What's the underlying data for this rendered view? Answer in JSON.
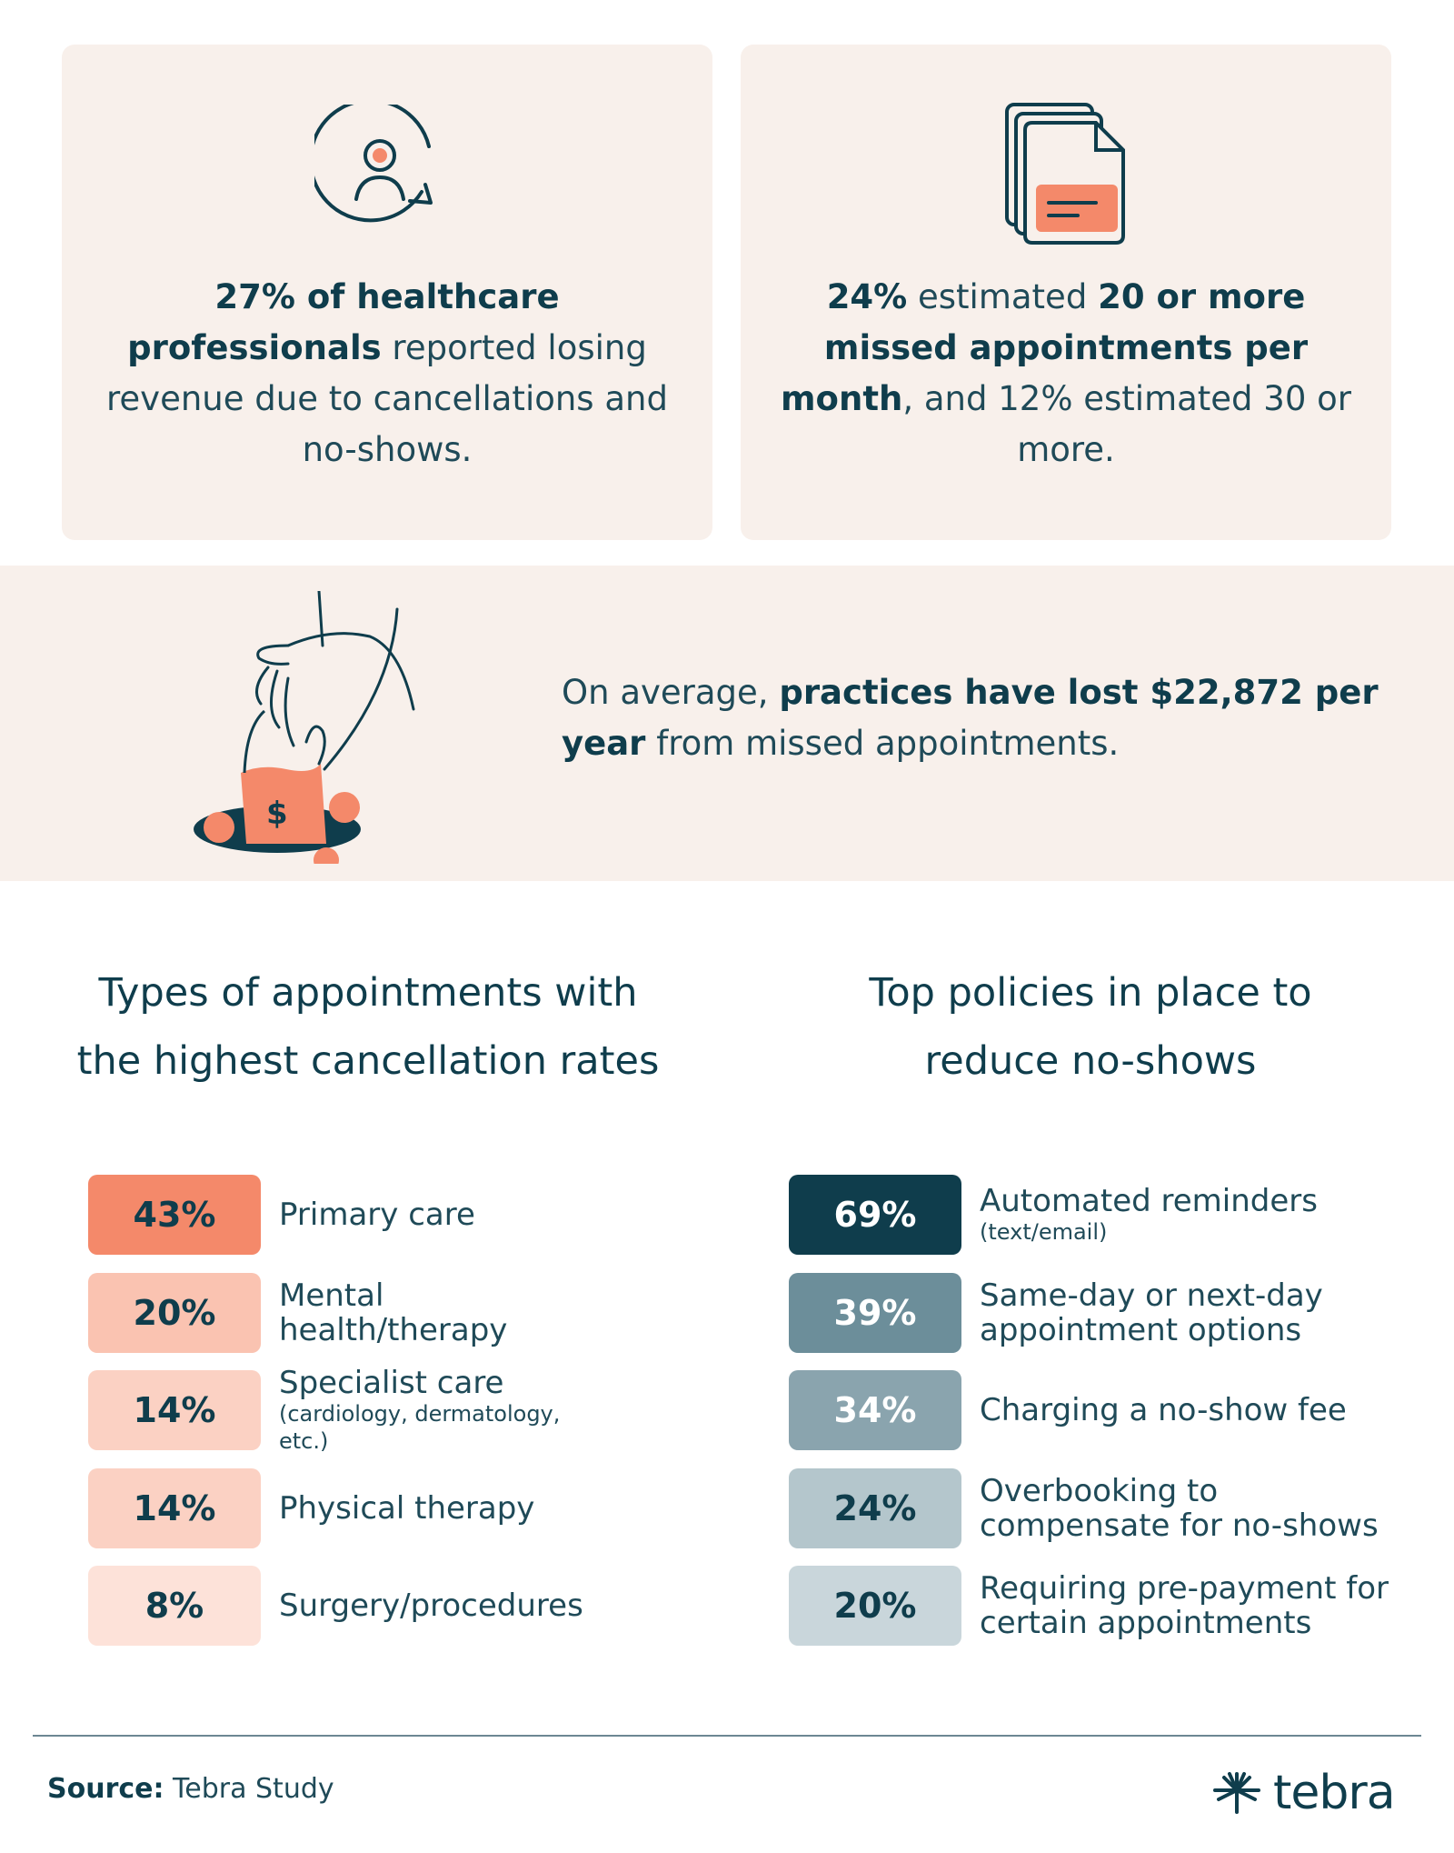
{
  "cards": {
    "left": {
      "bold1": "27% of healthcare professionals",
      "text1": " reported losing revenue due to cancellations and no-shows."
    },
    "right": {
      "bold1": "24%",
      "text1": " estimated ",
      "bold2": "20 or more missed appointments per month",
      "text2": ", and 12% estimated 30 or more."
    }
  },
  "band": {
    "text1": "On average, ",
    "bold1": "practices have lost $22,872 per year",
    "text2": " from missed appointments."
  },
  "sections": {
    "left": {
      "title_line1": "Types of appointments with",
      "title_line2": "the highest cancellation rates",
      "rows": [
        {
          "value": "43%",
          "label": "Primary care",
          "sub": "",
          "bg": "#f4896a",
          "fg": "#0f3d4c"
        },
        {
          "value": "20%",
          "label": "Mental health/therapy",
          "sub": "",
          "bg": "#fac3b1",
          "fg": "#0f3d4c"
        },
        {
          "value": "14%",
          "label": "Specialist care",
          "sub": "(cardiology, dermatology, etc.)",
          "bg": "#fbd1c3",
          "fg": "#0f3d4c"
        },
        {
          "value": "14%",
          "label": "Physical therapy",
          "sub": "",
          "bg": "#fbd1c3",
          "fg": "#0f3d4c"
        },
        {
          "value": "8%",
          "label": "Surgery/procedures",
          "sub": "",
          "bg": "#fde2d9",
          "fg": "#0f3d4c"
        }
      ]
    },
    "right": {
      "title_line1": "Top policies in place to",
      "title_line2": "reduce no-shows",
      "rows": [
        {
          "value": "69%",
          "label": "Automated reminders",
          "sub": "(text/email)",
          "bg": "#0f3d4c",
          "fg": "#ffffff"
        },
        {
          "value": "39%",
          "label": "Same-day or next-day appointment options",
          "sub": "",
          "bg": "#6c8e9a",
          "fg": "#ffffff"
        },
        {
          "value": "34%",
          "label": "Charging a no-show fee",
          "sub": "",
          "bg": "#8aa4ae",
          "fg": "#ffffff"
        },
        {
          "value": "24%",
          "label": "Overbooking to compensate for no-shows",
          "sub": "",
          "bg": "#b4c6cc",
          "fg": "#0f3d4c"
        },
        {
          "value": "20%",
          "label": "Requiring pre-payment for certain appointments",
          "sub": "",
          "bg": "#c9d6db",
          "fg": "#0f3d4c"
        }
      ]
    }
  },
  "footer": {
    "source_label": "Source:",
    "source_text": " Tebra Study",
    "logo_text": "tebra"
  },
  "icons": {
    "card_left": "person-cycle-icon",
    "card_right": "documents-icon",
    "band": "hand-money-hole-icon",
    "logo": "tebra-logo-mark"
  }
}
